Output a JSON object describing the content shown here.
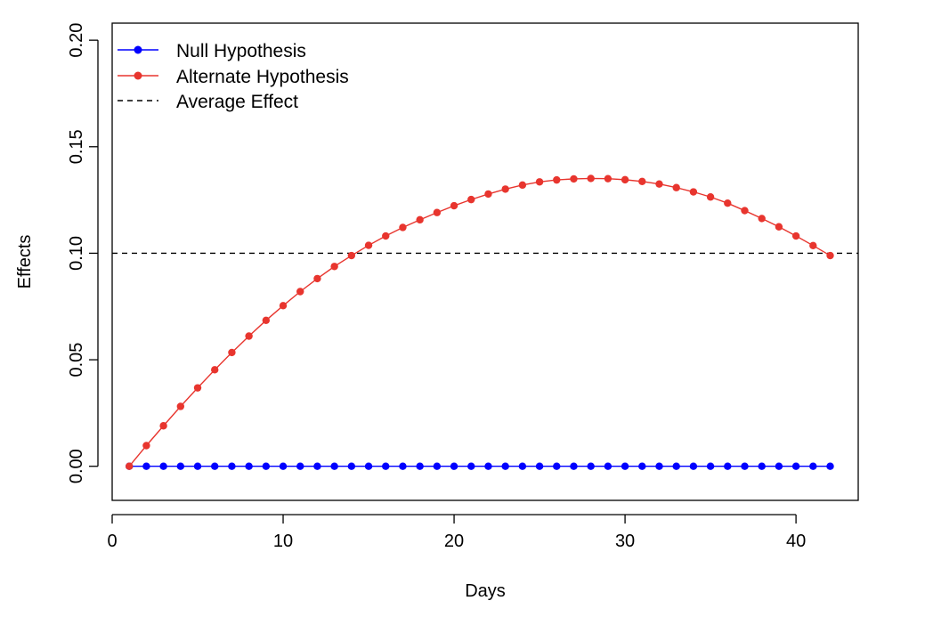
{
  "chart_data": {
    "type": "line",
    "title": "",
    "xlabel": "Days",
    "ylabel": "Effects",
    "xlim": [
      0,
      43.64
    ],
    "ylim": [
      -0.016,
      0.208
    ],
    "xticks": [
      0,
      10,
      20,
      30,
      40
    ],
    "xtick_labels": [
      "0",
      "10",
      "20",
      "30",
      "40"
    ],
    "yticks": [
      0.0,
      0.05,
      0.1,
      0.15,
      0.2
    ],
    "ytick_labels": [
      "0.00",
      "0.05",
      "0.10",
      "0.15",
      "0.20"
    ],
    "legend_position": "top-left",
    "x": [
      1,
      2,
      3,
      4,
      5,
      6,
      7,
      8,
      9,
      10,
      11,
      12,
      13,
      14,
      15,
      16,
      17,
      18,
      19,
      20,
      21,
      22,
      23,
      24,
      25,
      26,
      27,
      28,
      29,
      30,
      31,
      32,
      33,
      34,
      35,
      36,
      37,
      38,
      39,
      40,
      41,
      42
    ],
    "series": [
      {
        "name": "Null Hypothesis",
        "color": "#0000ff",
        "style": "line-points",
        "values": [
          0,
          0,
          0,
          0,
          0,
          0,
          0,
          0,
          0,
          0,
          0,
          0,
          0,
          0,
          0,
          0,
          0,
          0,
          0,
          0,
          0,
          0,
          0,
          0,
          0,
          0,
          0,
          0,
          0,
          0,
          0,
          0,
          0,
          0,
          0,
          0,
          0,
          0,
          0,
          0,
          0,
          0
        ]
      },
      {
        "name": "Alternate Hypothesis",
        "color": "#e8352e",
        "style": "line-points",
        "values": [
          0.0,
          0.0097,
          0.019,
          0.0281,
          0.0368,
          0.0453,
          0.0534,
          0.0611,
          0.0685,
          0.0754,
          0.082,
          0.0881,
          0.0938,
          0.0989,
          0.1037,
          0.1081,
          0.1121,
          0.1157,
          0.1191,
          0.1223,
          0.1252,
          0.1278,
          0.1301,
          0.132,
          0.1335,
          0.1344,
          0.1349,
          0.1351,
          0.135,
          0.1345,
          0.1337,
          0.1325,
          0.1308,
          0.1288,
          0.1264,
          0.1235,
          0.12,
          0.1163,
          0.1124,
          0.1081,
          0.1036,
          0.0989
        ]
      }
    ],
    "reference_lines": [
      {
        "name": "Average Effect",
        "y": 0.1,
        "style": "dashed",
        "color": "#000000"
      }
    ]
  }
}
